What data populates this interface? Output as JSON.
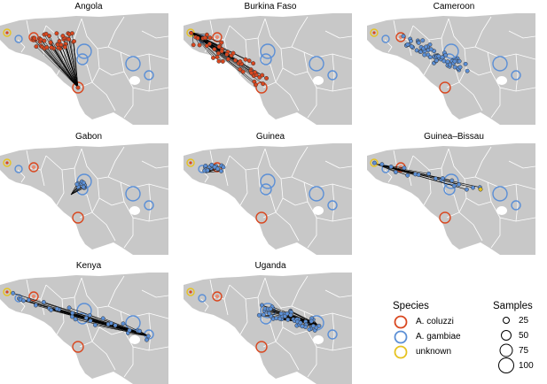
{
  "panels": [
    {
      "title": "Angola",
      "highlight": "angola"
    },
    {
      "title": "Burkina Faso",
      "highlight": "burkina"
    },
    {
      "title": "Cameroon",
      "highlight": "cameroon"
    },
    {
      "title": "Gabon",
      "highlight": "gabon"
    },
    {
      "title": "Guinea",
      "highlight": "guinea"
    },
    {
      "title": "Guinea–Bissau",
      "highlight": "bissau"
    },
    {
      "title": "Kenya",
      "highlight": "kenya"
    },
    {
      "title": "Uganda",
      "highlight": "uganda"
    }
  ],
  "legend": {
    "species_title": "Species",
    "species": [
      {
        "label": "A. coluzzi",
        "color": "#d9471f"
      },
      {
        "label": "A. gambiae",
        "color": "#5b8fd6"
      },
      {
        "label": "unknown",
        "color": "#e6c21f"
      }
    ],
    "samples_title": "Samples",
    "samples": [
      {
        "label": "25",
        "value": 25
      },
      {
        "label": "50",
        "value": 50
      },
      {
        "label": "75",
        "value": 75
      },
      {
        "label": "100",
        "value": 100
      }
    ]
  },
  "colors": {
    "land": "#c8c8c8",
    "border": "#ffffff",
    "coluzzi": "#d9471f",
    "gambiae": "#5b8fd6",
    "unknown": "#e6c21f",
    "line": "#000000"
  }
}
